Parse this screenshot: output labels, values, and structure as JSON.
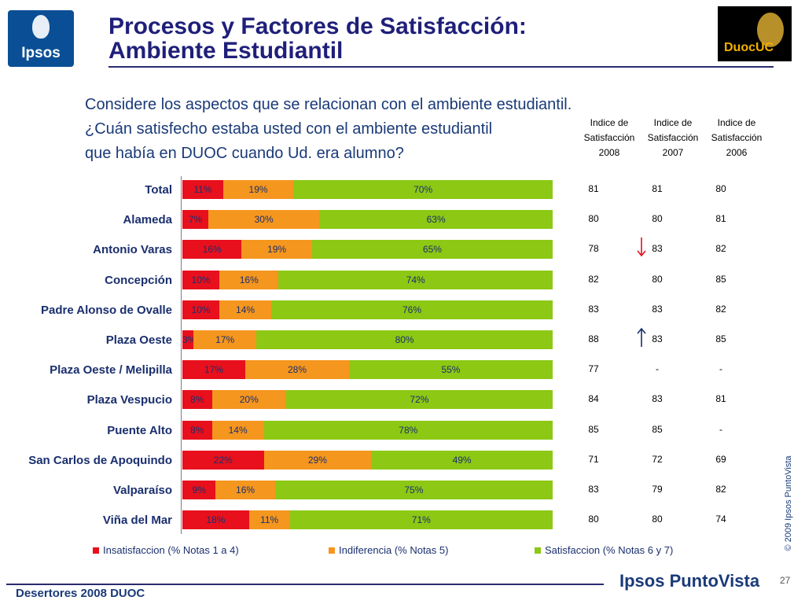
{
  "header": {
    "title_line1": "Procesos y Factores de Satisfacción:",
    "title_line2": "Ambiente Estudiantil",
    "ipsos_logo_text": "Ipsos",
    "duoc_logo_text": "DuocUC"
  },
  "question": {
    "line1": "Considere los aspectos que se relacionan con el ambiente estudiantil.",
    "line2": "¿Cuán satisfecho estaba usted con el ambiente estudiantil",
    "line3": "que había en DUOC cuando Ud. era alumno?"
  },
  "columns": [
    {
      "line1": "Indice de",
      "line2": "Satisfacción",
      "line3": "2008"
    },
    {
      "line1": "Indice de",
      "line2": "Satisfacción",
      "line3": "2007"
    },
    {
      "line1": "Indice de",
      "line2": "Satisfacción",
      "line3": "2006"
    }
  ],
  "chart_data": {
    "type": "bar",
    "orientation": "horizontal",
    "stacked": true,
    "categories": [
      "Total",
      "Alameda",
      "Antonio Varas",
      "Concepción",
      "Padre Alonso de Ovalle",
      "Plaza Oeste",
      "Plaza Oeste / Melipilla",
      "Plaza Vespucio",
      "Puente Alto",
      "San Carlos de Apoquindo",
      "Valparaíso",
      "Viña del Mar"
    ],
    "series": [
      {
        "name": "Insatisfaccion (% Notas 1 a 4)",
        "color": "#e8101c",
        "values": [
          11,
          7,
          16,
          10,
          10,
          3,
          17,
          8,
          8,
          22,
          9,
          18
        ],
        "labels": [
          "11%",
          "7%",
          "16%",
          "10%",
          "10%",
          "3%",
          "17%",
          "8%",
          "8%",
          "22%",
          "9%",
          "18%"
        ]
      },
      {
        "name": "Indiferencia (% Notas 5)",
        "color": "#f5961e",
        "values": [
          19,
          30,
          19,
          16,
          14,
          17,
          28,
          20,
          14,
          29,
          16,
          11
        ],
        "labels": [
          "19%",
          "30%",
          "19%",
          "16%",
          "14%",
          "17%",
          "28%",
          "20%",
          "14%",
          "29%",
          "16%",
          "11%"
        ]
      },
      {
        "name": "Satisfaccion (% Notas 6 y 7)",
        "color": "#8cc814",
        "values": [
          70,
          63,
          65,
          74,
          76,
          80,
          55,
          72,
          78,
          49,
          75,
          71
        ],
        "labels": [
          "70%",
          "63%",
          "65%",
          "74%",
          "76%",
          "80%",
          "55%",
          "72%",
          "78%",
          "49%",
          "75%",
          "71%"
        ]
      }
    ],
    "xlim": [
      0,
      100
    ],
    "legend_position": "bottom",
    "grid": false
  },
  "satisfaction_index": {
    "y2008": [
      "81",
      "80",
      "78",
      "82",
      "83",
      "88",
      "77",
      "84",
      "85",
      "71",
      "83",
      "80"
    ],
    "y2007": [
      "81",
      "80",
      "83",
      "80",
      "83",
      "83",
      "-",
      "83",
      "85",
      "72",
      "79",
      "80"
    ],
    "y2006": [
      "80",
      "81",
      "82",
      "85",
      "82",
      "85",
      "-",
      "81",
      "-",
      "69",
      "82",
      "74"
    ],
    "arrows": [
      {
        "row": 2,
        "direction": "down",
        "icon": "arrow-down-icon",
        "color": "#e8101c"
      },
      {
        "row": 5,
        "direction": "up",
        "icon": "arrow-up-icon",
        "color": "#1a2f6e"
      }
    ]
  },
  "footer": {
    "copyright": "© 2009 Ipsos PuntoVista",
    "study": "Desertores 2008 DUOC",
    "brand": "Ipsos PuntoVista",
    "page": "27"
  }
}
